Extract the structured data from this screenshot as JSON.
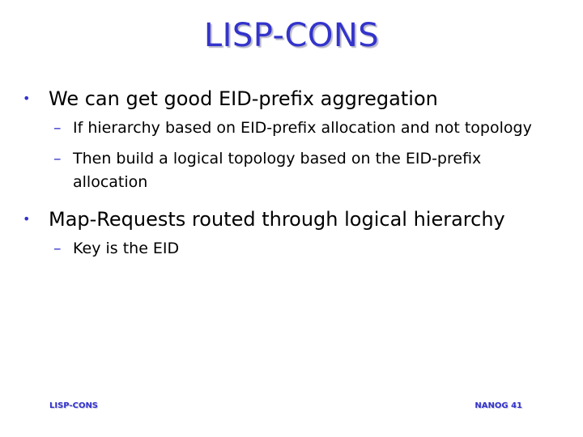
{
  "title": "LISP-CONS",
  "bullets": [
    {
      "text": "We can get good EID-prefix aggregation",
      "sub": [
        "If hierarchy based on EID-prefix allocation and not topology",
        "Then build a logical topology based on the EID-prefix allocation"
      ]
    },
    {
      "text": "Map-Requests routed through logical hierarchy",
      "sub": [
        "Key is the EID"
      ]
    }
  ],
  "markers": {
    "bullet": "•",
    "dash": "–"
  },
  "footer": {
    "left": "LISP-CONS",
    "right": "NANOG 41"
  },
  "colors": {
    "accent": "#3333cc"
  }
}
